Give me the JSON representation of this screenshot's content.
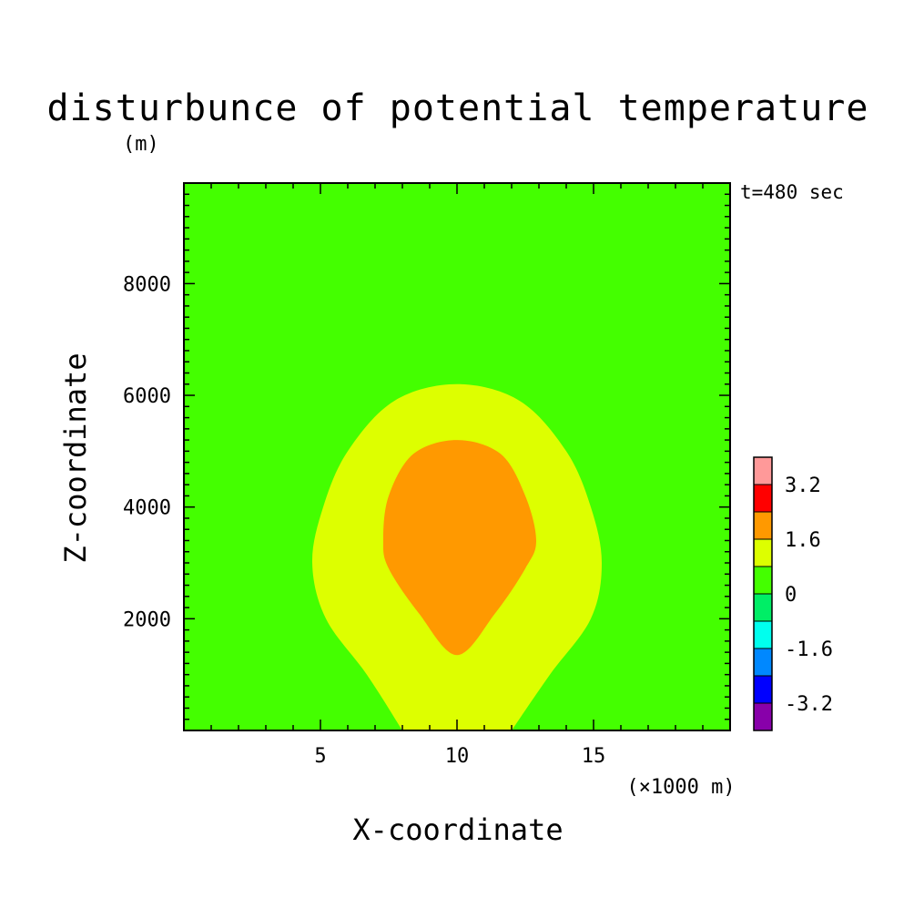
{
  "chart_data": {
    "type": "heatmap",
    "title": "disturbunce of potential temperature",
    "title_unit": "(m)",
    "time_label": "t=480 sec",
    "xlabel": "X-coordinate",
    "x_unit_label": "(×1000 m)",
    "ylabel": "Z-coordinate",
    "xlim": [
      0,
      20
    ],
    "ylim": [
      0,
      9800
    ],
    "x_ticks": [
      5,
      10,
      15
    ],
    "x_tick_labels": [
      "5",
      "10",
      "15"
    ],
    "y_ticks": [
      2000,
      4000,
      6000,
      8000
    ],
    "y_tick_labels": [
      "2000",
      "4000",
      "6000",
      "8000"
    ],
    "background_level": "0 to 0.8",
    "contours": [
      {
        "level": "0.8 to 1.6",
        "color": "#ddff00",
        "outline": [
          [
            8.0,
            0
          ],
          [
            6.7,
            1000
          ],
          [
            5.2,
            2000
          ],
          [
            4.7,
            3000
          ],
          [
            5.1,
            4000
          ],
          [
            6.0,
            5000
          ],
          [
            7.7,
            5900
          ],
          [
            10.0,
            6200
          ],
          [
            12.3,
            5900
          ],
          [
            14.0,
            5000
          ],
          [
            14.9,
            4000
          ],
          [
            15.3,
            3000
          ],
          [
            14.9,
            2000
          ],
          [
            13.4,
            1000
          ],
          [
            12.0,
            0
          ]
        ]
      },
      {
        "level": "1.6 to 2.4",
        "color": "#ff9900",
        "outline": [
          [
            10.0,
            1350
          ],
          [
            8.6,
            2100
          ],
          [
            7.5,
            2900
          ],
          [
            7.3,
            3400
          ],
          [
            7.5,
            4200
          ],
          [
            8.4,
            4950
          ],
          [
            10.0,
            5200
          ],
          [
            11.6,
            4950
          ],
          [
            12.5,
            4200
          ],
          [
            12.9,
            3400
          ],
          [
            12.5,
            2900
          ],
          [
            11.4,
            2100
          ]
        ]
      }
    ],
    "colorbar": {
      "colors": [
        "#ff9999",
        "#ff0000",
        "#ff9900",
        "#ddff00",
        "#44ff00",
        "#00ee66",
        "#00ffee",
        "#0088ff",
        "#0000ff",
        "#8800aa"
      ],
      "labels": [
        "3.2",
        "1.6",
        "0",
        "-1.6",
        "-3.2"
      ],
      "label_positions": [
        3.2,
        1.6,
        0,
        -1.6,
        -3.2
      ],
      "range": [
        -4.0,
        4.0
      ]
    }
  }
}
